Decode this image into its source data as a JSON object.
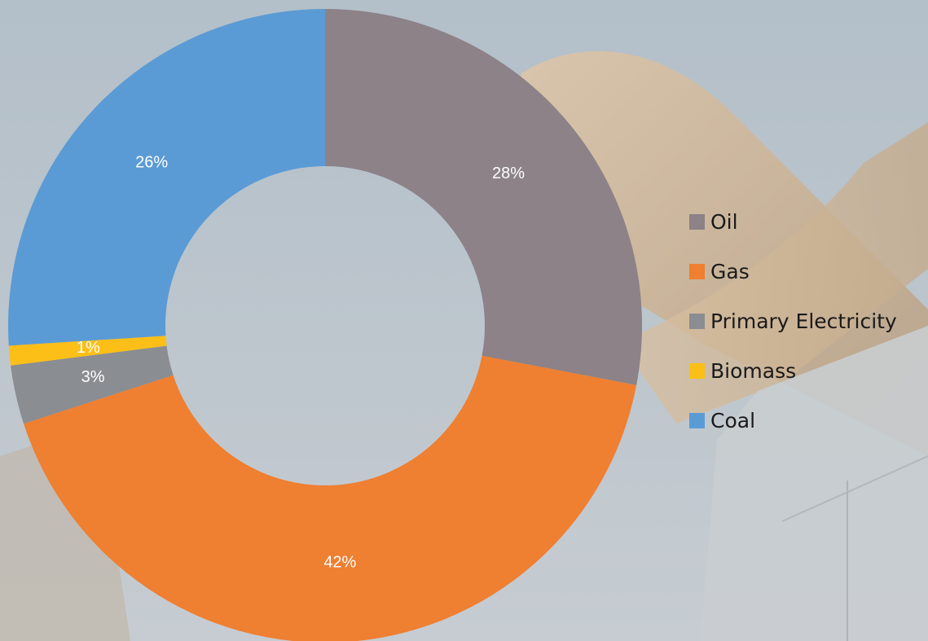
{
  "chart_data": {
    "type": "pie",
    "variant": "donut",
    "categories": [
      "Oil",
      "Gas",
      "Primary Electricity",
      "Biomass",
      "Coal"
    ],
    "values": [
      28,
      42,
      3,
      1,
      26
    ],
    "labels": [
      "28%",
      "42%",
      "3%",
      "1%",
      "26%"
    ],
    "colors": [
      "#8c8287",
      "#ef7f31",
      "#8a8d91",
      "#fbbf17",
      "#5b9bd5"
    ],
    "legend_position": "right",
    "start_angle_deg": 0,
    "direction": "clockwise"
  },
  "legend": {
    "items": [
      {
        "label": "Oil",
        "color": "#8c8287"
      },
      {
        "label": "Gas",
        "color": "#ef7f31"
      },
      {
        "label": "Primary Electricity",
        "color": "#8a8d91"
      },
      {
        "label": "Biomass",
        "color": "#fbbf17"
      },
      {
        "label": "Coal",
        "color": "#5b9bd5"
      }
    ]
  }
}
